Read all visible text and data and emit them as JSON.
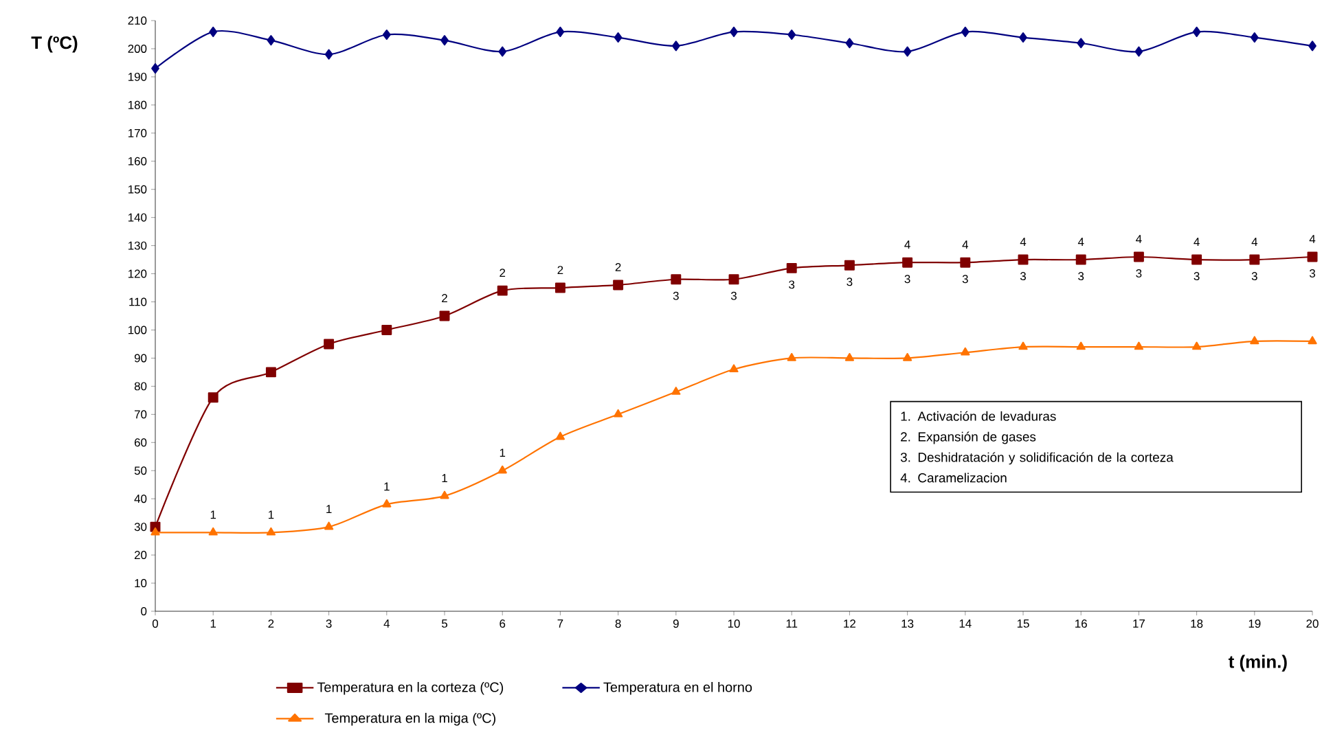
{
  "chart_data": {
    "type": "line",
    "xlabel": "t (min.)",
    "ylabel": "T (ºC)",
    "x": [
      0,
      1,
      2,
      3,
      4,
      5,
      6,
      7,
      8,
      9,
      10,
      11,
      12,
      13,
      14,
      15,
      16,
      17,
      18,
      19,
      20
    ],
    "series": [
      {
        "name": "Temperatura en la corteza (ºC)",
        "color": "#800000",
        "marker": "square",
        "values": [
          30,
          76,
          85,
          95,
          100,
          105,
          114,
          115,
          116,
          118,
          118,
          122,
          123,
          124,
          124,
          125,
          125,
          126,
          125,
          125,
          126
        ]
      },
      {
        "name": "Temperatura en el horno",
        "color": "#000080",
        "marker": "diamond",
        "values": [
          193,
          206,
          203,
          198,
          205,
          203,
          199,
          206,
          204,
          201,
          206,
          205,
          202,
          199,
          206,
          204,
          202,
          199,
          206,
          204,
          201
        ]
      },
      {
        "name": "Temperatura en la miga (ºC)",
        "color": "#ff7300",
        "marker": "triangle",
        "values": [
          28,
          28,
          28,
          30,
          38,
          41,
          50,
          62,
          70,
          78,
          86,
          90,
          90,
          90,
          92,
          94,
          94,
          94,
          94,
          96,
          96
        ]
      }
    ],
    "xlim": [
      0,
      20
    ],
    "xticks": [
      0,
      1,
      2,
      3,
      4,
      5,
      6,
      7,
      8,
      9,
      10,
      11,
      12,
      13,
      14,
      15,
      16,
      17,
      18,
      19,
      20
    ],
    "ylim": [
      0,
      210
    ],
    "yticks": [
      0,
      10,
      20,
      30,
      40,
      50,
      60,
      70,
      80,
      90,
      100,
      110,
      120,
      130,
      140,
      150,
      160,
      170,
      180,
      190,
      200,
      210
    ],
    "grid": false,
    "legend": "bottom",
    "line_style": "solid",
    "annotations": [
      "1. Activación de levaduras",
      "2. Expansión de gases",
      "3. Deshidratación y solidificación de la corteza",
      "4. Caramelizacion",
      {
        "text": "1",
        "x": 1,
        "y": 28
      },
      {
        "text": "1",
        "x": 2,
        "y": 28
      },
      {
        "text": "1",
        "x": 3,
        "y": 30
      },
      {
        "text": "1",
        "x": 4,
        "y": 38
      },
      {
        "text": "1",
        "x": 5,
        "y": 41
      },
      {
        "text": "1",
        "x": 6,
        "y": 50
      },
      {
        "text": "2",
        "x": 5,
        "y": 105
      },
      {
        "text": "2",
        "x": 6,
        "y": 114
      },
      {
        "text": "2",
        "x": 7,
        "y": 115
      },
      {
        "text": "2",
        "x": 8,
        "y": 116
      },
      {
        "text": "3",
        "x": 9,
        "y": 118
      },
      {
        "text": "3",
        "x": 10,
        "y": 118
      },
      {
        "text": "3",
        "x": 11,
        "y": 122
      },
      {
        "text": "3",
        "x": 12,
        "y": 123
      },
      {
        "text": "3",
        "x": 13,
        "y": 124
      },
      {
        "text": "3",
        "x": 14,
        "y": 124
      },
      {
        "text": "3",
        "x": 15,
        "y": 125
      },
      {
        "text": "3",
        "x": 16,
        "y": 125
      },
      {
        "text": "3",
        "x": 17,
        "y": 126
      },
      {
        "text": "3",
        "x": 18,
        "y": 125
      },
      {
        "text": "3",
        "x": 19,
        "y": 125
      },
      {
        "text": "3",
        "x": 20,
        "y": 126
      },
      {
        "text": "4",
        "x": 13,
        "y": 124
      },
      {
        "text": "4",
        "x": 14,
        "y": 124
      },
      {
        "text": "4",
        "x": 15,
        "y": 125
      },
      {
        "text": "4",
        "x": 16,
        "y": 125
      },
      {
        "text": "4",
        "x": 17,
        "y": 126
      },
      {
        "text": "4",
        "x": 18,
        "y": 125
      },
      {
        "text": "4",
        "x": 19,
        "y": 125
      },
      {
        "text": "4",
        "x": 20,
        "y": 126
      }
    ]
  }
}
